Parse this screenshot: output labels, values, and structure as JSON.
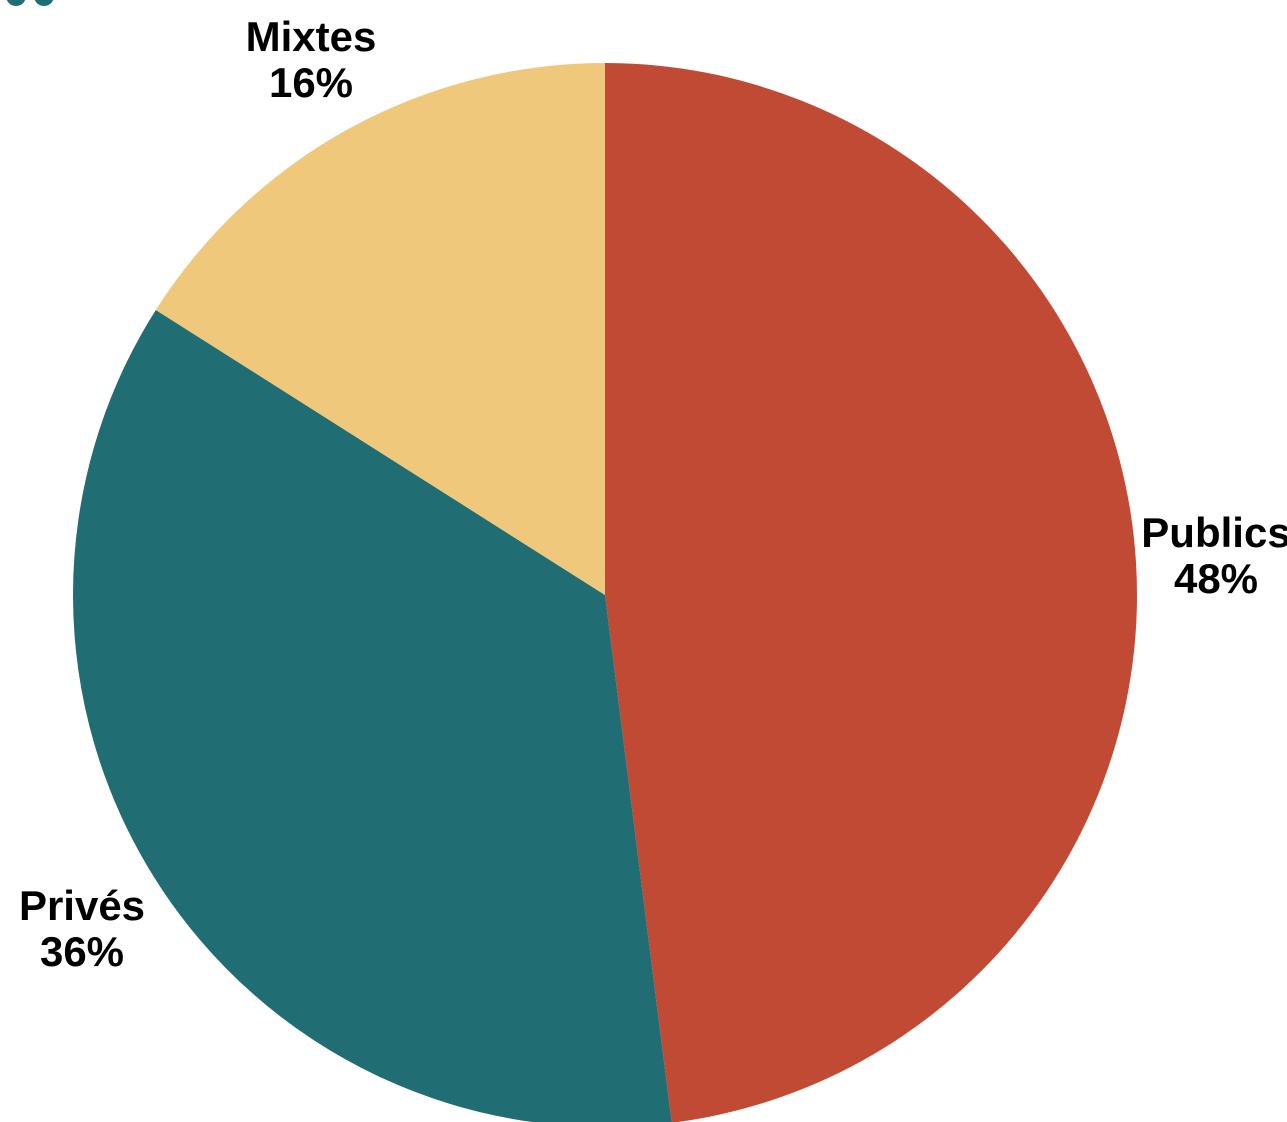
{
  "chart_data": {
    "type": "pie",
    "categories": [
      "Publics",
      "Privés",
      "Mixtes"
    ],
    "values": [
      48,
      36,
      16
    ],
    "labels": [
      "48%",
      "36%",
      "16%"
    ],
    "colors": [
      "#c14a35",
      "#206d73",
      "#f0c87c"
    ],
    "start_angle": "12 o'clock",
    "direction": "clockwise",
    "title": "",
    "legend": "none"
  }
}
